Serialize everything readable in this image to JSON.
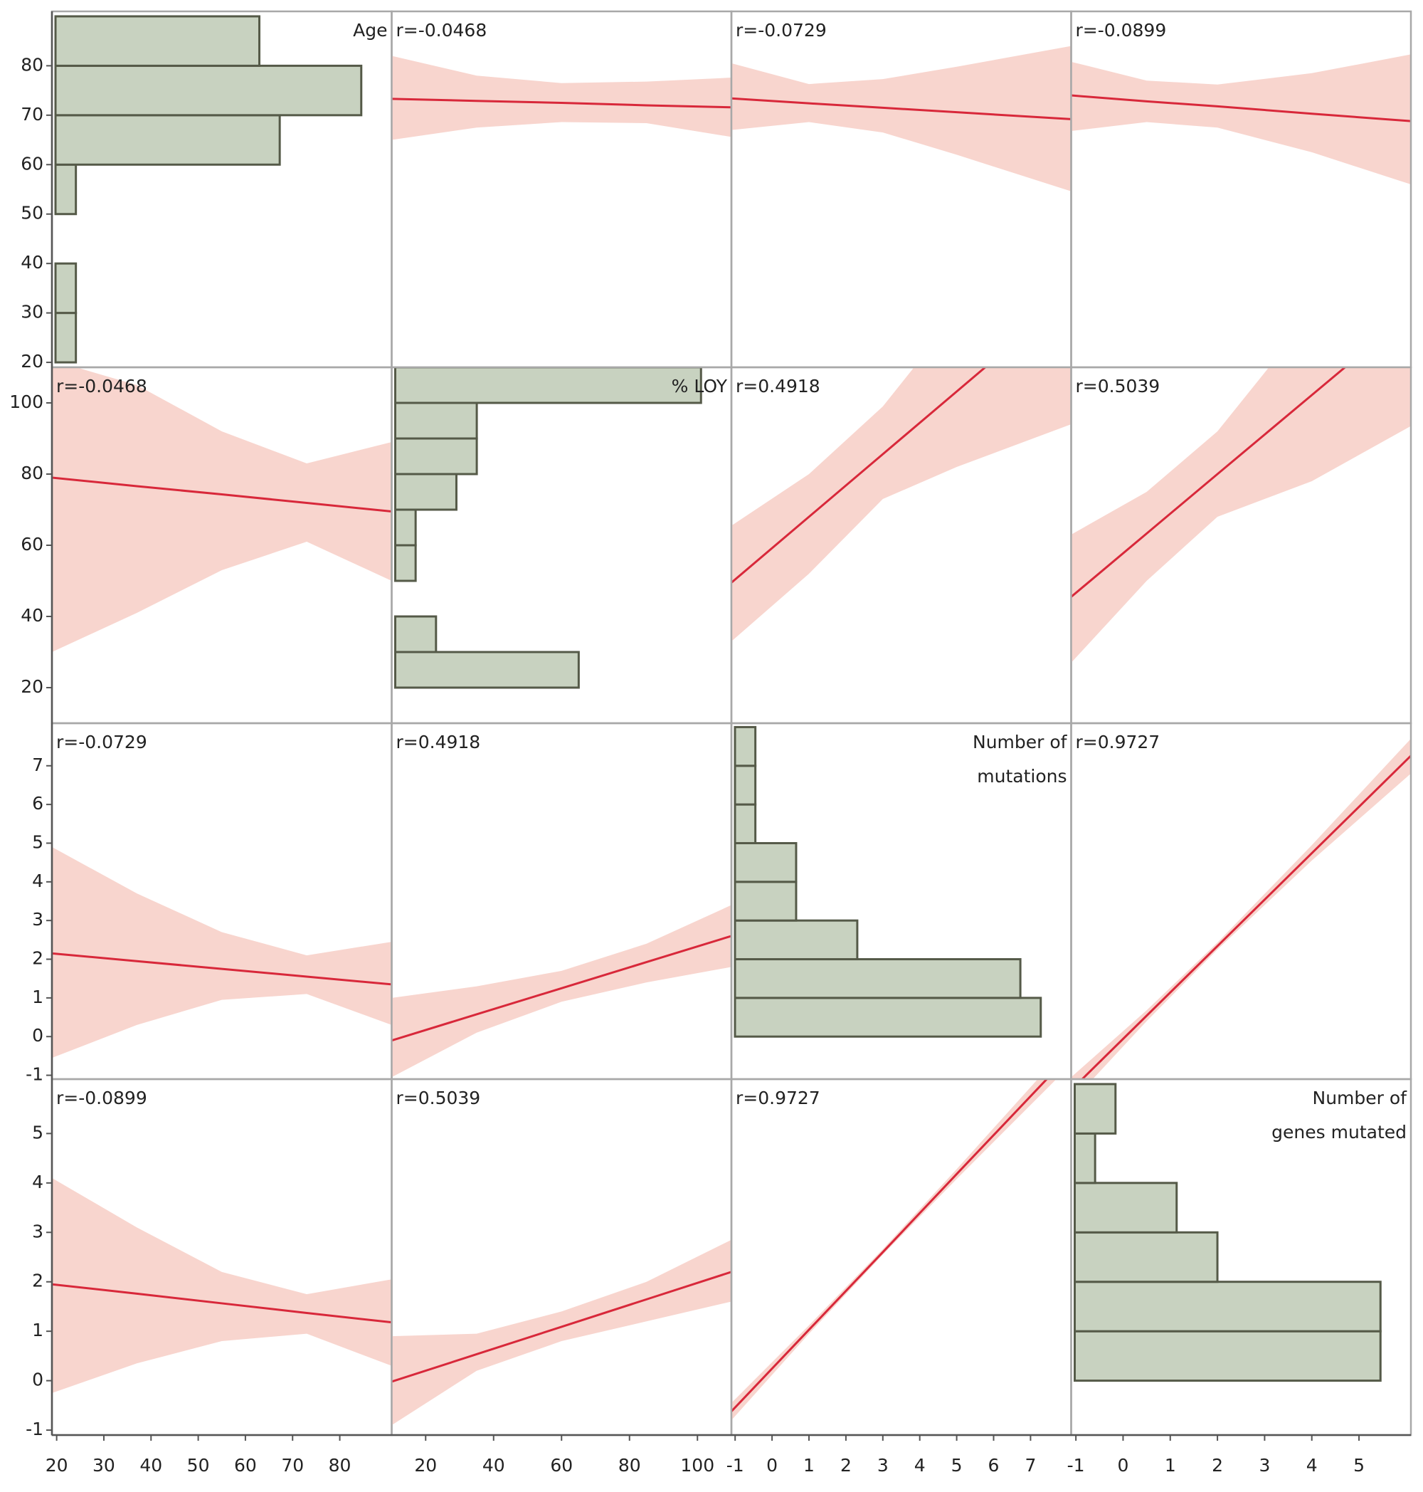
{
  "chart_data": {
    "type": "scatter_matrix",
    "colors": {
      "bar": "#c8d2c0",
      "bar_edge": "#555a48",
      "line": "#d8283a",
      "band": "#f8d5ce",
      "frame": "#a8a8a8"
    },
    "variables": [
      {
        "label": [
          "Age"
        ],
        "lim": [
          19,
          91
        ],
        "ticks": [
          20,
          30,
          40,
          50,
          60,
          70,
          80
        ],
        "bins": [
          20,
          30,
          40,
          50,
          60,
          70,
          80,
          90
        ],
        "counts": [
          1,
          1,
          0,
          1,
          11,
          15,
          10
        ]
      },
      {
        "label": [
          "% LOY"
        ],
        "lim": [
          10,
          110
        ],
        "ticks": [
          20,
          40,
          60,
          80,
          100
        ],
        "bins": [
          20,
          30,
          40,
          50,
          60,
          70,
          80,
          90,
          100,
          110
        ],
        "counts": [
          9,
          2,
          0,
          1,
          1,
          3,
          4,
          4,
          15
        ]
      },
      {
        "label": [
          "Number of",
          "mutations"
        ],
        "lim": [
          -1.1,
          8.1
        ],
        "ticks": [
          -1,
          0,
          1,
          2,
          3,
          4,
          5,
          6,
          7
        ],
        "bins": [
          0,
          1,
          2,
          3,
          4,
          5,
          6,
          7,
          8
        ],
        "counts": [
          15,
          14,
          6,
          3,
          3,
          1,
          1,
          1
        ]
      },
      {
        "label": [
          "Number of",
          "genes mutated"
        ],
        "lim": [
          -1.1,
          6.1
        ],
        "ticks": [
          -1,
          0,
          1,
          2,
          3,
          4,
          5
        ],
        "bins": [
          0,
          1,
          2,
          3,
          4,
          5,
          6
        ],
        "counts": [
          15,
          15,
          7,
          5,
          1,
          2
        ]
      }
    ],
    "cells": [
      [
        null,
        {
          "label": "r=-0.0468",
          "x": [
            10,
            35,
            60,
            85,
            110
          ],
          "fit": [
            73.3,
            72.9,
            72.5,
            72.0,
            71.6
          ],
          "lower": [
            65,
            67.5,
            68.6,
            68.4,
            65.6
          ],
          "upper": [
            82,
            78,
            76.5,
            76.8,
            77.6
          ]
        },
        {
          "label": "r=-0.0729",
          "x": [
            -1.1,
            1,
            3,
            5,
            8.1
          ],
          "fit": [
            73.4,
            72.4,
            71.5,
            70.6,
            69.2
          ],
          "lower": [
            67,
            68.6,
            66.5,
            62,
            54.6
          ],
          "upper": [
            80.5,
            76.3,
            77.3,
            79.8,
            84
          ]
        },
        {
          "label": "r=-0.0899",
          "x": [
            -1.1,
            0.5,
            2,
            4,
            6.1
          ],
          "fit": [
            74,
            72.8,
            71.8,
            70.3,
            68.8
          ],
          "lower": [
            66.8,
            68.6,
            67.5,
            62.5,
            56
          ],
          "upper": [
            80.8,
            77,
            76.2,
            78.5,
            82.3
          ]
        }
      ],
      [
        {
          "label": "r=-0.0468",
          "x": [
            19,
            37,
            55,
            73,
            91
          ],
          "fit": [
            79,
            76.6,
            74.3,
            71.9,
            69.5
          ],
          "lower": [
            30,
            41,
            53,
            61,
            50
          ],
          "upper": [
            112,
            105,
            92,
            83,
            89
          ]
        },
        null,
        {
          "label": "r=0.4918",
          "x": [
            -1.1,
            1,
            3,
            5,
            8.1
          ],
          "fit": [
            49.5,
            68,
            85.6,
            103.2,
            130.5
          ],
          "lower": [
            33,
            52,
            73,
            82,
            94
          ],
          "upper": [
            65.5,
            80,
            99,
            125,
            170
          ]
        },
        {
          "label": "r=0.5039",
          "x": [
            -1.1,
            0.5,
            2,
            4,
            6.1
          ],
          "fit": [
            45.5,
            63.3,
            80,
            102.2,
            125.5
          ],
          "lower": [
            27,
            50,
            68,
            78,
            93.5
          ],
          "upper": [
            63,
            75,
            92,
            125,
            160
          ]
        }
      ],
      [
        {
          "label": "r=-0.0729",
          "x": [
            19,
            37,
            55,
            73,
            91
          ],
          "fit": [
            2.15,
            1.95,
            1.75,
            1.55,
            1.35
          ],
          "lower": [
            -0.55,
            0.3,
            0.95,
            1.1,
            0.3
          ],
          "upper": [
            4.9,
            3.7,
            2.7,
            2.1,
            2.45
          ]
        },
        {
          "label": "r=0.4918",
          "x": [
            10,
            35,
            60,
            85,
            110
          ],
          "fit": [
            -0.1,
            0.575,
            1.25,
            1.925,
            2.6
          ],
          "lower": [
            -1.05,
            0.1,
            0.9,
            1.4,
            1.8
          ],
          "upper": [
            1.0,
            1.3,
            1.7,
            2.4,
            3.4
          ]
        },
        null,
        {
          "label": "r=0.9727",
          "x": [
            -1.1,
            0.5,
            2,
            4,
            6.1
          ],
          "fit": [
            -1.38,
            0.54,
            2.34,
            4.74,
            7.26
          ],
          "lower": [
            -1.7,
            0.4,
            2.25,
            4.55,
            6.8
          ],
          "upper": [
            -1.05,
            0.68,
            2.43,
            4.95,
            7.7
          ]
        }
      ],
      [
        {
          "label": "r=-0.0899",
          "x": [
            19,
            37,
            55,
            73,
            91
          ],
          "fit": [
            1.95,
            1.76,
            1.565,
            1.37,
            1.18
          ],
          "lower": [
            -0.25,
            0.35,
            0.8,
            0.95,
            0.3
          ],
          "upper": [
            4.1,
            3.1,
            2.2,
            1.75,
            2.05
          ]
        },
        {
          "label": "r=0.5039",
          "x": [
            10,
            35,
            60,
            85,
            110
          ],
          "fit": [
            -0.02,
            0.535,
            1.09,
            1.645,
            2.2
          ],
          "lower": [
            -0.9,
            0.2,
            0.8,
            1.2,
            1.6
          ],
          "upper": [
            0.9,
            0.95,
            1.4,
            2.0,
            2.85
          ]
        },
        {
          "label": "r=0.9727",
          "x": [
            -1.1,
            1,
            3,
            5,
            8.1
          ],
          "fit": [
            -0.62,
            1.03,
            2.6,
            4.18,
            6.62
          ],
          "lower": [
            -0.8,
            0.95,
            2.55,
            4.08,
            6.4
          ],
          "upper": [
            -0.45,
            1.12,
            2.66,
            4.28,
            6.85
          ]
        },
        null
      ]
    ]
  }
}
